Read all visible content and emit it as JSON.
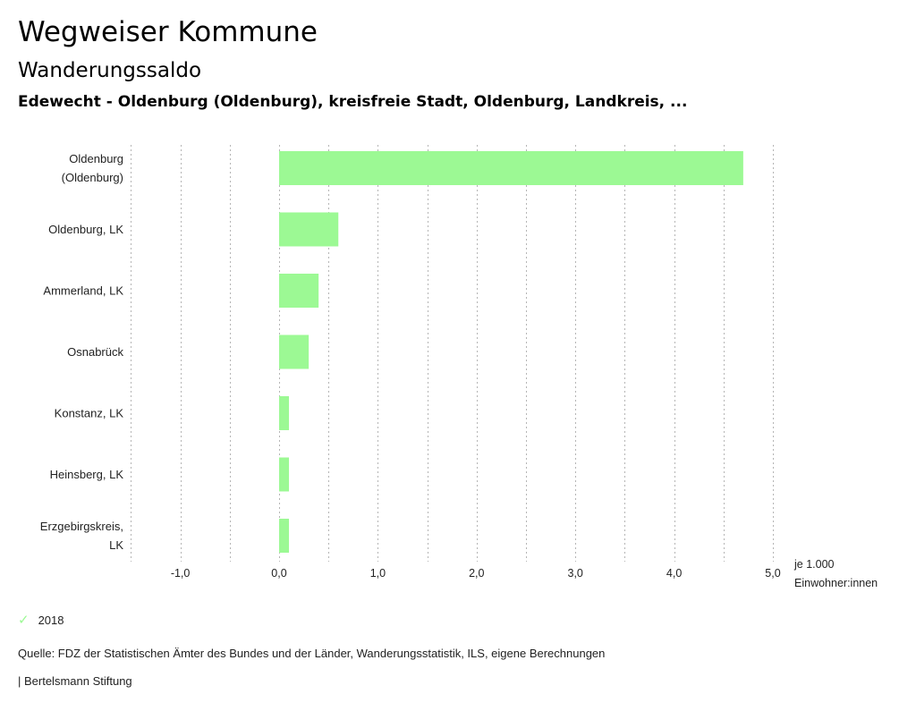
{
  "header": {
    "title": "Wegweiser Kommune",
    "subtitle": "Wanderungssaldo",
    "region": "Edewecht - Oldenburg (Oldenburg), kreisfreie Stadt, Oldenburg, Landkreis, ..."
  },
  "chart_data": {
    "type": "bar",
    "orientation": "horizontal",
    "title": "Wanderungssaldo",
    "categories": [
      [
        "Oldenburg",
        "(Oldenburg)"
      ],
      [
        "Oldenburg, LK"
      ],
      [
        "Ammerland, LK"
      ],
      [
        "Osnabrück"
      ],
      [
        "Konstanz, LK"
      ],
      [
        "Heinsberg, LK"
      ],
      [
        "Erzgebirgskreis,",
        "LK"
      ]
    ],
    "series": [
      {
        "name": "2018",
        "color": "#9cf994",
        "values": [
          4.7,
          0.6,
          0.4,
          0.3,
          0.1,
          0.1,
          0.1
        ]
      }
    ],
    "xlim": [
      -1.5,
      5.0
    ],
    "xticks": [
      -1.0,
      0.0,
      1.0,
      2.0,
      3.0,
      4.0,
      5.0
    ],
    "xtick_labels": [
      "-1,0",
      "0,0",
      "1,0",
      "2,0",
      "3,0",
      "4,0",
      "5,0"
    ],
    "gridline_step": 0.5,
    "xlabel": [
      "je 1.000",
      "Einwohner:innen"
    ],
    "grid": true,
    "legend_position": "bottom-left"
  },
  "legend": {
    "items": [
      {
        "label": "2018",
        "icon": "check-icon",
        "color": "#9cf994"
      }
    ]
  },
  "footer": {
    "source": "Quelle: FDZ der Statistischen Ämter des Bundes und der Länder, Wanderungsstatistik, ILS, eigene Berechnungen",
    "credit": "| Bertelsmann Stiftung"
  }
}
